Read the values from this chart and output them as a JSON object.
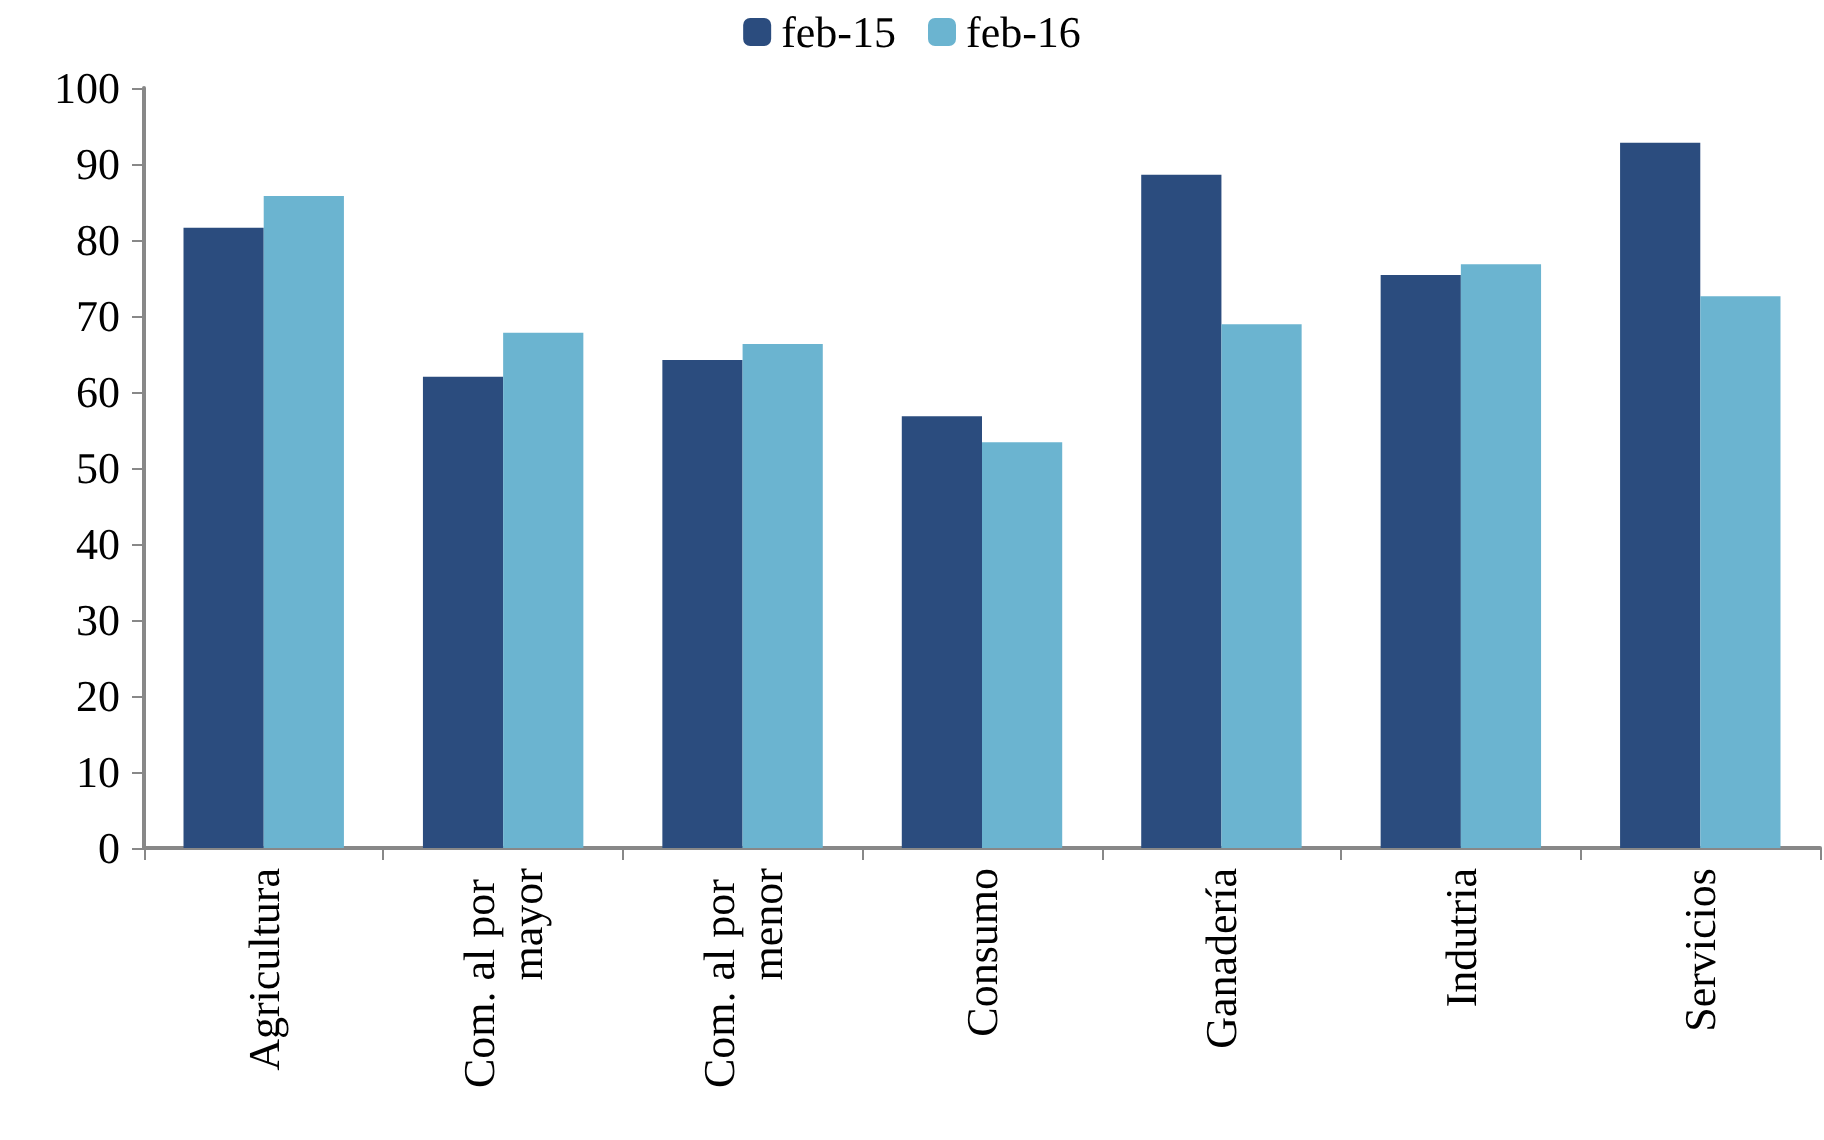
{
  "chart_data": {
    "type": "bar",
    "categories": [
      "Agricultura",
      "Com. al por mayor",
      "Com. al por menor",
      "Consumo",
      "Ganadería",
      "Indutria",
      "Servicios"
    ],
    "series": [
      {
        "name": "feb-15",
        "color": "#2b4c7e",
        "values": [
          81.6,
          62.0,
          64.2,
          56.8,
          88.6,
          75.4,
          92.8
        ]
      },
      {
        "name": "feb-16",
        "color": "#6bb4d0",
        "values": [
          85.8,
          67.8,
          66.3,
          53.4,
          68.9,
          76.8,
          72.6
        ]
      }
    ],
    "ylim": [
      0,
      100
    ],
    "yticks": [
      0,
      10,
      20,
      30,
      40,
      50,
      60,
      70,
      80,
      90,
      100
    ],
    "grid": false,
    "legend": "top"
  }
}
